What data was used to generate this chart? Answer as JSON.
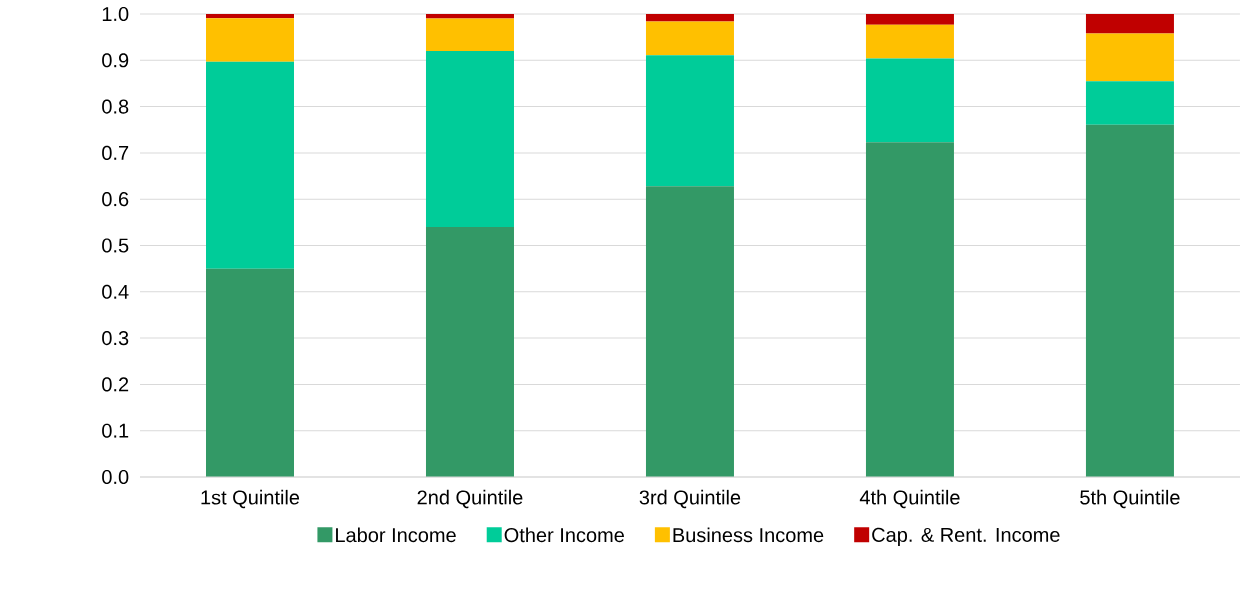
{
  "chart_data": {
    "type": "bar",
    "stacked": true,
    "categories": [
      "1st Quintile",
      "2nd Quintile",
      "3rd Quintile",
      "4th Quintile",
      "5th Quintile"
    ],
    "series": [
      {
        "name": "Labor Income",
        "color": "#339966",
        "values": [
          0.45,
          0.54,
          0.628,
          0.723,
          0.761
        ]
      },
      {
        "name": "Other Income",
        "color": "#00cc99",
        "values": [
          0.447,
          0.38,
          0.283,
          0.181,
          0.094
        ]
      },
      {
        "name": "Business Income",
        "color": "#ffc000",
        "values": [
          0.094,
          0.07,
          0.073,
          0.073,
          0.103
        ]
      },
      {
        "name": "Cap. & Rent. Income",
        "color": "#c00000",
        "values": [
          0.009,
          0.01,
          0.016,
          0.023,
          0.042
        ]
      }
    ],
    "ylim": [
      0,
      1
    ],
    "yticks": [
      {
        "value": 0,
        "label": "0.0"
      },
      {
        "value": 0.1,
        "label": "0.1"
      },
      {
        "value": 0.2,
        "label": "0.2"
      },
      {
        "value": 0.3,
        "label": "0.3"
      },
      {
        "value": 0.4,
        "label": "0.4"
      },
      {
        "value": 0.5,
        "label": "0.5"
      },
      {
        "value": 0.6,
        "label": "0.6"
      },
      {
        "value": 0.7,
        "label": "0.7"
      },
      {
        "value": 0.8,
        "label": "0.8"
      },
      {
        "value": 0.9,
        "label": "0.9"
      },
      {
        "value": 1,
        "label": "1.0"
      }
    ],
    "grid": "y",
    "legend": "bottom"
  }
}
